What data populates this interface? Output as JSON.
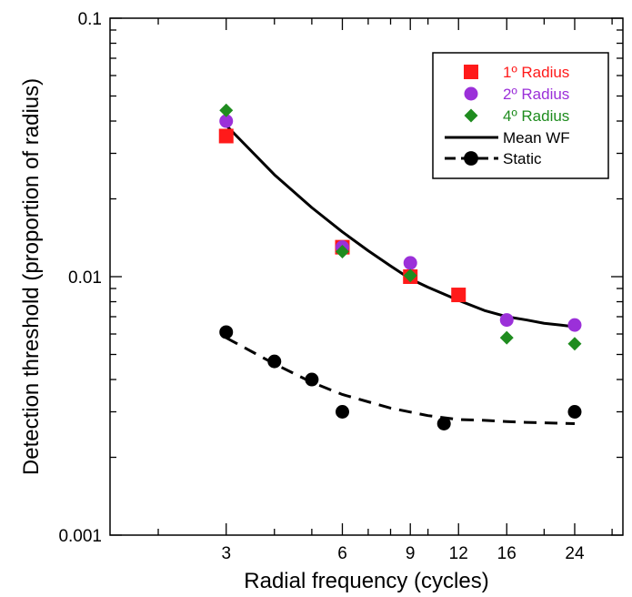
{
  "chart_data": {
    "type": "scatter",
    "xlabel": "Radial frequency (cycles)",
    "ylabel": "Detection threshold (proportion of radius)",
    "x_scale": "log",
    "y_scale": "log",
    "xlim": [
      1.5,
      32
    ],
    "ylim": [
      0.001,
      0.1
    ],
    "x_ticks": [
      3,
      6,
      9,
      12,
      16,
      24
    ],
    "x_tick_labels": [
      "3",
      "6",
      "9",
      "12",
      "16",
      "24"
    ],
    "y_ticks": [
      0.001,
      0.01,
      0.1
    ],
    "y_tick_labels": [
      "0.001",
      "0.01",
      "0.1"
    ],
    "grid": false,
    "legend_position": "top-right",
    "series": [
      {
        "name": "1º Radius",
        "kind": "points",
        "marker": "square",
        "color": "#ff1a1a",
        "x": [
          3,
          6,
          9,
          12
        ],
        "y": [
          0.035,
          0.013,
          0.01,
          0.0085
        ]
      },
      {
        "name": "2º Radius",
        "kind": "points",
        "marker": "circle",
        "color": "#9b30d9",
        "x": [
          3,
          6,
          9,
          16,
          24
        ],
        "y": [
          0.04,
          0.013,
          0.0113,
          0.0068,
          0.0065
        ]
      },
      {
        "name": "4º Radius",
        "kind": "points",
        "marker": "diamond",
        "color": "#1f8c1f",
        "x": [
          3,
          6,
          9,
          16,
          24
        ],
        "y": [
          0.044,
          0.0125,
          0.0101,
          0.0058,
          0.0055
        ]
      },
      {
        "name": "Mean WF",
        "kind": "line",
        "style": "solid",
        "color": "#000000",
        "x": [
          3,
          4,
          5,
          6,
          7,
          8,
          9,
          10,
          12,
          14,
          16,
          18,
          20,
          22,
          24
        ],
        "y": [
          0.0385,
          0.0248,
          0.0185,
          0.0149,
          0.0126,
          0.011,
          0.0098,
          0.0091,
          0.0081,
          0.0074,
          0.007,
          0.0068,
          0.0066,
          0.0065,
          0.0064
        ]
      },
      {
        "name": "Static",
        "kind": "line+points",
        "style": "dashed",
        "marker": "circle",
        "color": "#000000",
        "x": [
          3,
          4,
          5,
          6,
          11,
          24
        ],
        "y": [
          0.0061,
          0.0047,
          0.004,
          0.003,
          0.0027,
          0.003
        ],
        "fit_x": [
          3,
          4,
          5,
          6,
          8,
          10,
          12,
          14,
          16,
          18,
          20,
          22,
          24
        ],
        "fit_y": [
          0.0058,
          0.0046,
          0.0039,
          0.0035,
          0.0031,
          0.0029,
          0.0028,
          0.00278,
          0.00275,
          0.00273,
          0.00272,
          0.00271,
          0.0027
        ]
      }
    ]
  },
  "legend": [
    {
      "label": "1º Radius",
      "color": "#ff1a1a",
      "marker": "square"
    },
    {
      "label": "2º Radius",
      "color": "#9b30d9",
      "marker": "circle"
    },
    {
      "label": "4º Radius",
      "color": "#1f8c1f",
      "marker": "diamond"
    },
    {
      "label": "Mean WF",
      "color": "#000000",
      "marker": "solid-line"
    },
    {
      "label": "Static",
      "color": "#000000",
      "marker": "dashed-line-circle"
    }
  ]
}
